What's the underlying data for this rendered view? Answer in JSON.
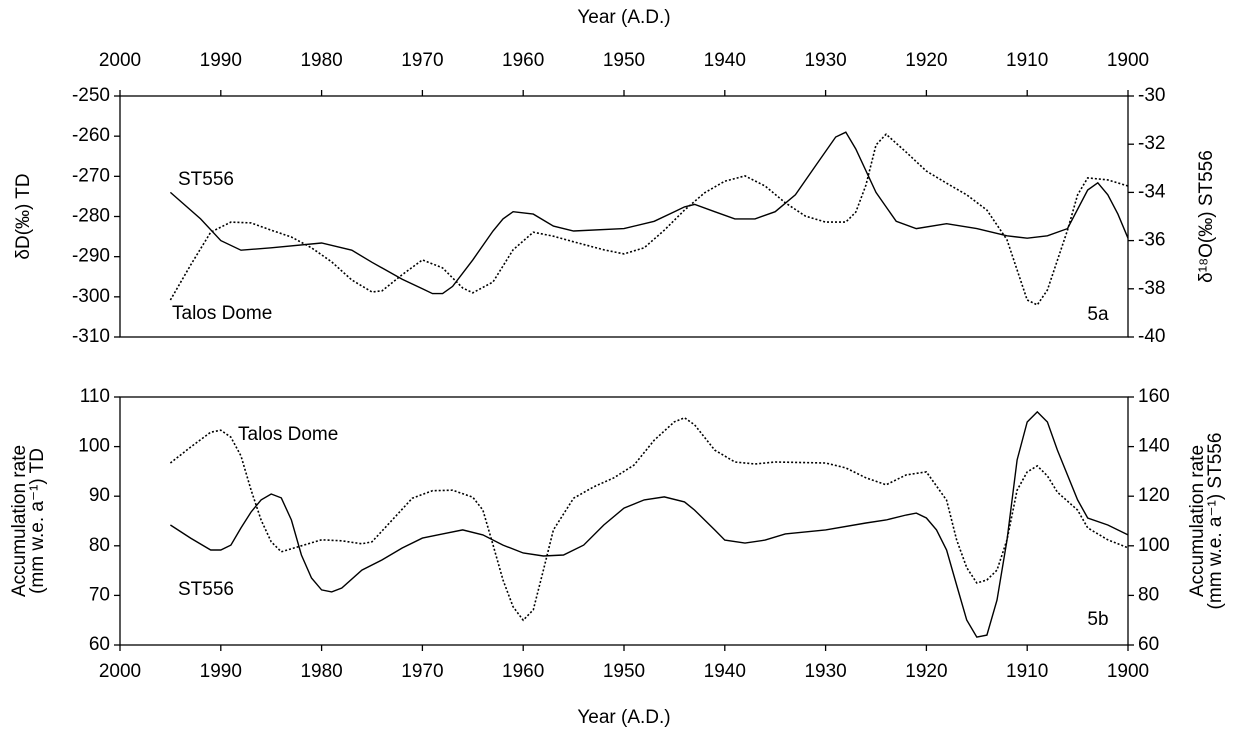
{
  "chart_data": [
    {
      "type": "line",
      "xlabel": "Year (A.D.)",
      "ylabel": [
        "δD(‰) TD"
      ],
      "y2label": [
        "δ¹⁸O(‰) ST556"
      ],
      "panel_label": "5a",
      "xlim": [
        2000,
        1900
      ],
      "xticks": [
        2000,
        1990,
        1980,
        1970,
        1960,
        1950,
        1940,
        1930,
        1920,
        1910,
        1900
      ],
      "ylim": [
        -310,
        -250
      ],
      "yticks": [
        -310,
        -300,
        -290,
        -280,
        -270,
        -260,
        -250
      ],
      "y2lim": [
        -40,
        -30
      ],
      "y2ticks": [
        -40,
        -38,
        -36,
        -34,
        -32,
        -30
      ],
      "series": [
        {
          "name": "ST556",
          "color": "#000000",
          "style": "solid",
          "axis": "y2",
          "x": [
            1995,
            1992,
            1990,
            1988,
            1985,
            1980,
            1977,
            1975,
            1972,
            1970,
            1969,
            1968,
            1967,
            1965,
            1963,
            1962,
            1961,
            1959,
            1957,
            1955,
            1950,
            1947,
            1945,
            1944,
            1943,
            1941,
            1939,
            1937,
            1935,
            1933,
            1931,
            1929,
            1928,
            1927,
            1925,
            1923,
            1921,
            1918,
            1915,
            1912,
            1910,
            1908,
            1906,
            1904,
            1903,
            1902,
            1901,
            1900
          ],
          "values": [
            -34.0,
            -35.1,
            -36.0,
            -36.4,
            -36.3,
            -36.1,
            -36.4,
            -36.9,
            -37.6,
            -38.0,
            -38.2,
            -38.2,
            -37.9,
            -36.8,
            -35.6,
            -35.1,
            -34.8,
            -34.9,
            -35.4,
            -35.6,
            -35.5,
            -35.2,
            -34.8,
            -34.6,
            -34.5,
            -34.8,
            -35.1,
            -35.1,
            -34.8,
            -34.1,
            -32.9,
            -31.7,
            -31.5,
            -32.2,
            -34.0,
            -35.2,
            -35.5,
            -35.3,
            -35.5,
            -35.8,
            -35.9,
            -35.8,
            -35.5,
            -33.9,
            -33.6,
            -34.1,
            -34.9,
            -35.9
          ]
        },
        {
          "name": "Talos Dome",
          "color": "#000000",
          "style": "dotted",
          "x": [
            1995,
            1993,
            1991,
            1989,
            1987,
            1985,
            1983,
            1981,
            1979,
            1977,
            1975,
            1974,
            1972,
            1970,
            1968,
            1966,
            1965,
            1963,
            1961,
            1959,
            1957,
            1955,
            1952,
            1950,
            1948,
            1946,
            1944,
            1942,
            1940,
            1938,
            1936,
            1934,
            1932,
            1930,
            1928,
            1927,
            1926,
            1925,
            1924,
            1922,
            1920,
            1918,
            1916,
            1914,
            1912,
            1910,
            1909,
            1908,
            1906,
            1905,
            1904,
            1902,
            1900
          ],
          "values": [
            -300.8,
            -292.1,
            -283.9,
            -281.4,
            -281.6,
            -283.4,
            -285.1,
            -287.8,
            -291.3,
            -295.8,
            -298.8,
            -298.5,
            -294.5,
            -290.8,
            -292.8,
            -297.8,
            -299.0,
            -296.3,
            -288.3,
            -283.9,
            -284.9,
            -286.3,
            -288.3,
            -289.3,
            -287.8,
            -283.4,
            -278.4,
            -274.1,
            -271.2,
            -269.9,
            -272.4,
            -276.6,
            -279.9,
            -281.4,
            -281.4,
            -278.9,
            -272.2,
            -262.2,
            -259.5,
            -264.0,
            -268.7,
            -271.7,
            -274.6,
            -278.4,
            -285.8,
            -300.8,
            -302.0,
            -298.3,
            -283.4,
            -274.6,
            -270.4,
            -270.9,
            -272.4
          ]
        }
      ]
    },
    {
      "type": "line",
      "xlabel": "Year (A.D.)",
      "ylabel": [
        "Accumulation rate",
        "(mm w.e. a⁻¹) TD"
      ],
      "y2label": [
        "Accumulation rate",
        "(mm w.e. a⁻¹) ST556"
      ],
      "panel_label": "5b",
      "xlim": [
        2000,
        1900
      ],
      "xticks": [
        2000,
        1990,
        1980,
        1970,
        1960,
        1950,
        1940,
        1930,
        1920,
        1910,
        1900
      ],
      "ylim": [
        60,
        110
      ],
      "yticks": [
        60,
        70,
        80,
        90,
        100,
        110
      ],
      "y2lim": [
        60,
        160
      ],
      "y2ticks": [
        60,
        80,
        100,
        120,
        140,
        160
      ],
      "series": [
        {
          "name": "Talos Dome",
          "color": "#000000",
          "style": "dotted",
          "x": [
            1995,
            1993,
            1991,
            1990,
            1989,
            1988,
            1987,
            1986,
            1985,
            1984,
            1982,
            1980,
            1978,
            1976,
            1975,
            1973,
            1971,
            1969,
            1967,
            1965,
            1964,
            1963,
            1962,
            1961,
            1960,
            1959,
            1958,
            1957,
            1955,
            1953,
            1951,
            1949,
            1947,
            1945,
            1944,
            1943,
            1941,
            1939,
            1937,
            1935,
            1930,
            1928,
            1926,
            1924,
            1922,
            1920,
            1918,
            1917,
            1916,
            1915,
            1914,
            1913,
            1912,
            1911,
            1910,
            1909,
            1908,
            1907,
            1905,
            1904,
            1902,
            1900
          ],
          "values": [
            96.7,
            99.9,
            102.9,
            103.3,
            101.9,
            98.1,
            91.3,
            85.2,
            80.8,
            78.8,
            80.0,
            81.2,
            81.0,
            80.4,
            80.8,
            85.2,
            89.6,
            91.1,
            91.2,
            89.8,
            87.2,
            80.2,
            73.1,
            67.7,
            65.0,
            67.1,
            75.1,
            83.2,
            89.6,
            91.9,
            93.7,
            96.3,
            101.3,
            105.0,
            105.8,
            104.4,
            99.3,
            96.9,
            96.5,
            96.9,
            96.7,
            95.7,
            93.7,
            92.3,
            94.3,
            94.9,
            89.2,
            81.2,
            75.6,
            72.5,
            73.1,
            75.1,
            81.2,
            91.2,
            94.9,
            96.1,
            94.1,
            90.8,
            87.2,
            83.6,
            81.2,
            79.6
          ]
        },
        {
          "name": "ST556",
          "color": "#000000",
          "style": "solid",
          "axis": "y2",
          "x": [
            1995,
            1993,
            1991,
            1990,
            1989,
            1988,
            1987,
            1986,
            1985,
            1984,
            1983,
            1982,
            1981,
            1980,
            1979,
            1978,
            1976,
            1974,
            1972,
            1970,
            1968,
            1966,
            1964,
            1962,
            1960,
            1958,
            1956,
            1954,
            1952,
            1950,
            1948,
            1946,
            1944,
            1943,
            1941,
            1940,
            1938,
            1936,
            1934,
            1930,
            1926,
            1924,
            1922,
            1921,
            1920,
            1919,
            1918,
            1917,
            1916,
            1915,
            1914,
            1913,
            1912,
            1911,
            1910,
            1909,
            1908,
            1907,
            1905,
            1904,
            1902,
            1900
          ],
          "values": [
            108.4,
            103.1,
            98.3,
            98.3,
            100.3,
            107.2,
            113.6,
            118.5,
            120.9,
            119.3,
            110.4,
            96.3,
            87.0,
            82.2,
            81.4,
            83.0,
            90.2,
            94.3,
            99.1,
            103.1,
            104.8,
            106.4,
            104.4,
            100.3,
            97.1,
            95.9,
            96.3,
            100.3,
            108.4,
            115.2,
            118.5,
            119.7,
            117.7,
            114.4,
            106.4,
            102.3,
            101.1,
            102.3,
            104.8,
            106.4,
            109.2,
            110.4,
            112.4,
            113.2,
            111.2,
            106.4,
            98.3,
            84.2,
            70.1,
            63.2,
            64.0,
            78.1,
            102.3,
            134.6,
            149.9,
            154.0,
            149.9,
            138.6,
            118.5,
            111.2,
            108.4,
            104.4
          ]
        }
      ]
    }
  ]
}
